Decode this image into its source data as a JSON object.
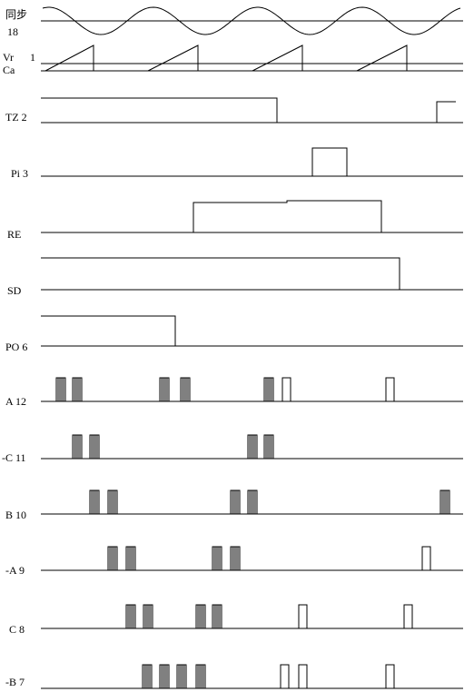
{
  "diagram": {
    "type": "timing-diagram",
    "signals": [
      {
        "id": "sync",
        "label": "同步",
        "label2": "18",
        "kind": "sine"
      },
      {
        "id": "vr",
        "label": "Vr",
        "label_pin": "1",
        "kind": "sawtooth"
      },
      {
        "id": "ca",
        "label": "Ca",
        "kind": "baseline"
      },
      {
        "id": "tz",
        "label": "TZ 2",
        "kind": "pulses"
      },
      {
        "id": "pi",
        "label": "Pi 3",
        "kind": "pulses"
      },
      {
        "id": "re",
        "label": "RE",
        "kind": "pulses"
      },
      {
        "id": "sd",
        "label": "SD",
        "kind": "pulses"
      },
      {
        "id": "po",
        "label": "PO 6",
        "kind": "pulses"
      },
      {
        "id": "a",
        "label": "A 12",
        "kind": "trains"
      },
      {
        "id": "nc",
        "label": "-C 11",
        "kind": "trains"
      },
      {
        "id": "b",
        "label": "B 10",
        "kind": "trains"
      },
      {
        "id": "na",
        "label": "-A 9",
        "kind": "trains"
      },
      {
        "id": "c",
        "label": "C 8",
        "kind": "trains"
      },
      {
        "id": "nb",
        "label": "-B 7",
        "kind": "trains"
      }
    ]
  }
}
